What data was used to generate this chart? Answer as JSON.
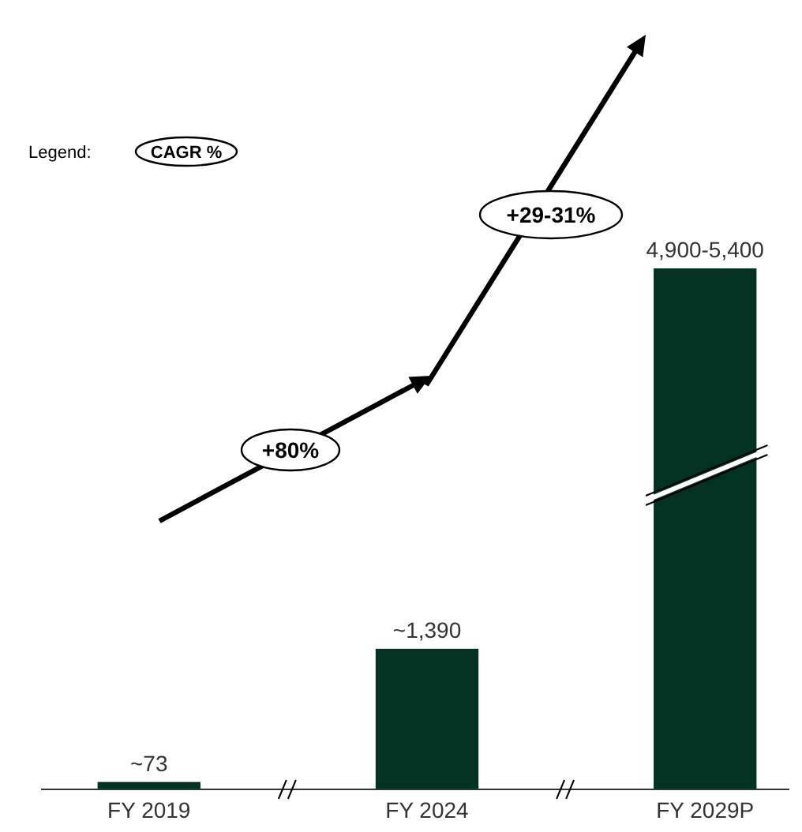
{
  "chart_data": {
    "type": "bar",
    "categories": [
      "FY 2019",
      "FY 2024",
      "FY 2029P"
    ],
    "values": [
      73,
      1390,
      5150
    ],
    "value_labels": [
      "~73",
      "~1,390",
      "4,900-5,400"
    ],
    "color": "#033222",
    "annotations": [
      "Legend:",
      "CAGR %",
      "+80%",
      "+29-31%"
    ]
  }
}
